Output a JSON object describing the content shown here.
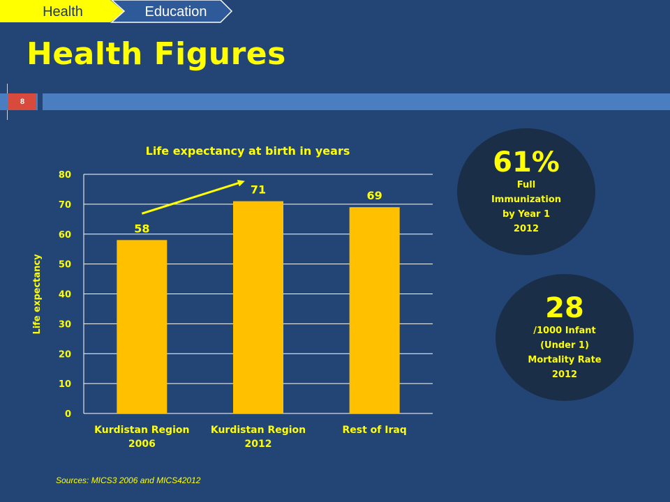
{
  "tabs": [
    {
      "label": "Health",
      "active": true
    },
    {
      "label": "Education",
      "active": false
    }
  ],
  "page_title": "Health Figures",
  "slide_number": "8",
  "chart_data": {
    "type": "bar",
    "title": "Life expectancy at birth in years",
    "ylabel": "Life expectancy",
    "categories": [
      "Kurdistan Region 2006",
      "Kurdistan Region 2012",
      "Rest of Iraq"
    ],
    "category_lines": [
      [
        "Kurdistan Region",
        "2006"
      ],
      [
        "Kurdistan Region",
        "2012"
      ],
      [
        "Rest of Iraq"
      ]
    ],
    "values": [
      58,
      71,
      69
    ],
    "ylim": [
      0,
      80
    ],
    "yticks": [
      0,
      10,
      20,
      30,
      40,
      50,
      60,
      70,
      80
    ],
    "grid": true,
    "bar_color": "#ffc000",
    "annotation": {
      "type": "arrow",
      "from_category": 0,
      "to_category": 1,
      "color": "#ffff00"
    }
  },
  "stats": [
    {
      "value": "61%",
      "lines": "Full\nImmunization\nby Year 1\n2012"
    },
    {
      "value": "28",
      "lines": "/1000 Infant\n(Under 1)\nMortality Rate\n2012"
    }
  ],
  "source": "Sources: MICS3 2006 and MICS42012",
  "colors": {
    "background": "#234575",
    "accent": "#ffff00",
    "strip": "#4a7ec0",
    "badge": "#d84a3c",
    "circle": "#1b2e48"
  }
}
